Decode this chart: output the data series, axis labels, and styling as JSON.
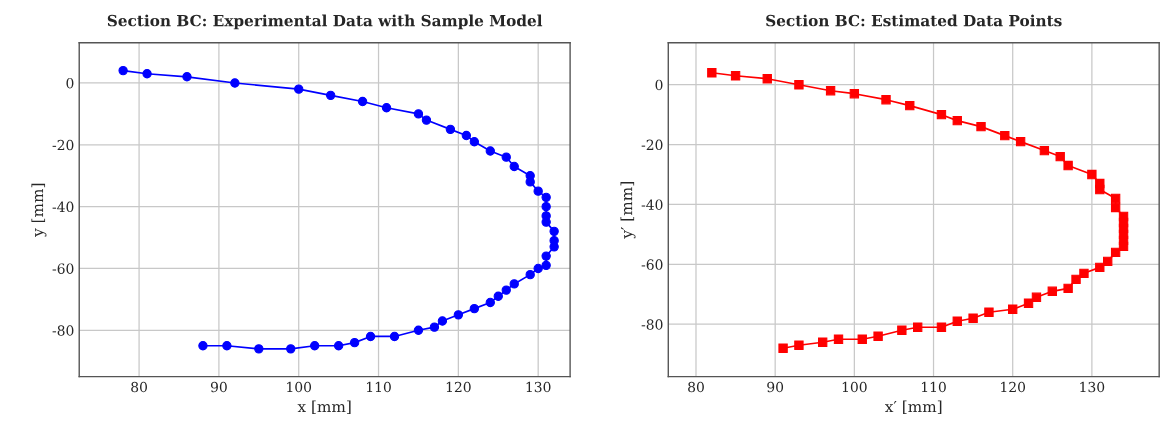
{
  "chart_data": [
    {
      "type": "line",
      "title": "Section BC: Experimental Data with Sample Model",
      "xlabel": "x [mm]",
      "ylabel": "y [mm]",
      "xlim": [
        72.5,
        134
      ],
      "ylim": [
        -95,
        13
      ],
      "xticks": [
        80,
        90,
        100,
        110,
        120,
        130
      ],
      "yticks": [
        -80,
        -60,
        -40,
        -20,
        0
      ],
      "grid": true,
      "marker": "circle",
      "line_style": "solid",
      "series": [
        {
          "color": "#0000ff",
          "x": [
            78,
            81,
            86,
            92,
            100,
            104,
            108,
            111,
            115,
            116,
            119,
            121,
            122,
            124,
            126,
            127,
            129,
            129,
            130,
            131,
            131,
            131,
            131,
            132,
            132,
            132,
            131,
            131,
            130,
            129,
            127,
            126,
            125,
            124,
            122,
            120,
            118,
            117,
            115,
            112,
            109,
            107,
            105,
            102,
            99,
            95,
            91,
            88
          ],
          "values": [
            4,
            3,
            2,
            0,
            -2,
            -4,
            -6,
            -8,
            -10,
            -12,
            -15,
            -17,
            -19,
            -22,
            -24,
            -27,
            -30,
            -32,
            -35,
            -37,
            -40,
            -43,
            -45,
            -48,
            -51,
            -53,
            -56,
            -59,
            -60,
            -62,
            -65,
            -67,
            -69,
            -71,
            -73,
            -75,
            -77,
            -79,
            -80,
            -82,
            -82,
            -84,
            -85,
            -85,
            -86,
            -86,
            -85,
            -85
          ]
        }
      ]
    },
    {
      "type": "line",
      "title": "Section BC: Estimated Data Points",
      "xlabel": "x′ [mm]",
      "ylabel": "y′ [mm]",
      "xlim": [
        76.5,
        138.5
      ],
      "ylim": [
        -97.5,
        14
      ],
      "xticks": [
        80,
        90,
        100,
        110,
        120,
        130
      ],
      "yticks": [
        -80,
        -60,
        -40,
        -20,
        0
      ],
      "grid": true,
      "marker": "square",
      "line_style": "solid",
      "series": [
        {
          "color": "#ff0000",
          "x": [
            82,
            85,
            89,
            93,
            97,
            100,
            104,
            107,
            111,
            113,
            116,
            119,
            121,
            124,
            126,
            127,
            130,
            131,
            131,
            133,
            133,
            134,
            134,
            134,
            134,
            134,
            134,
            133,
            132,
            131,
            129,
            128,
            127,
            125,
            123,
            122,
            120,
            117,
            115,
            113,
            111,
            108,
            106,
            103,
            101,
            98,
            96,
            93,
            91
          ],
          "values": [
            4,
            3,
            2,
            0,
            -2,
            -3,
            -5,
            -7,
            -10,
            -12,
            -14,
            -17,
            -19,
            -22,
            -24,
            -27,
            -30,
            -33,
            -35,
            -38,
            -41,
            -44,
            -46,
            -48,
            -50,
            -52,
            -54,
            -56,
            -59,
            -61,
            -63,
            -65,
            -68,
            -69,
            -71,
            -73,
            -75,
            -76,
            -78,
            -79,
            -81,
            -81,
            -82,
            -84,
            -85,
            -85,
            -86,
            -87,
            -88
          ]
        }
      ]
    }
  ]
}
